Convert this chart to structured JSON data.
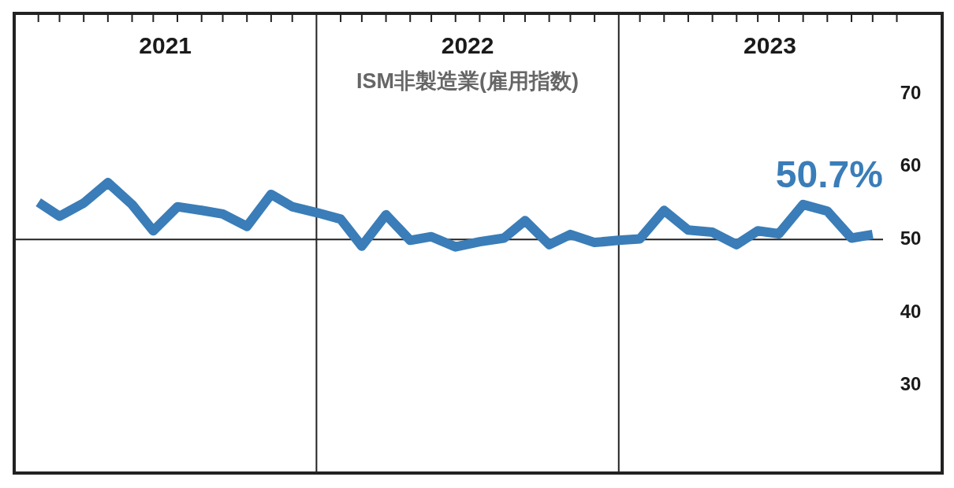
{
  "chart_data": {
    "type": "line",
    "title": "ISM非製造業(雇用指数)",
    "x": [
      2021.08,
      2021.15,
      2021.23,
      2021.31,
      2021.39,
      2021.46,
      2021.54,
      2021.62,
      2021.69,
      2021.77,
      2021.85,
      2021.92,
      2022.0,
      2022.08,
      2022.15,
      2022.23,
      2022.31,
      2022.38,
      2022.46,
      2022.54,
      2022.62,
      2022.69,
      2022.77,
      2022.84,
      2022.92,
      2023.0,
      2023.07,
      2023.15,
      2023.23,
      2023.31,
      2023.39,
      2023.46,
      2023.53,
      2023.61,
      2023.69,
      2023.77,
      2023.84
    ],
    "series": [
      {
        "color": "#3a7db8",
        "values": [
          55.1,
          53.2,
          55.0,
          57.8,
          54.8,
          51.2,
          54.5,
          54.0,
          53.5,
          51.8,
          56.2,
          54.5,
          53.7,
          52.8,
          49.1,
          53.4,
          49.9,
          50.4,
          49.0,
          49.7,
          50.2,
          52.6,
          49.3,
          50.7,
          49.6,
          49.9,
          50.1,
          54.0,
          51.3,
          51.0,
          49.3,
          51.2,
          50.8,
          54.8,
          53.9,
          50.2,
          50.7
        ]
      }
    ],
    "xlim": [
      2021,
      2024.07
    ],
    "xticks": [
      {
        "value": 2021.5,
        "label": "2021"
      },
      {
        "value": 2022.5,
        "label": "2022"
      },
      {
        "value": 2023.5,
        "label": "2023"
      },
      {
        "value": 2021.08,
        "label": null
      },
      {
        "value": 2021.15,
        "label": null
      },
      {
        "value": 2021.23,
        "label": null
      },
      {
        "value": 2021.31,
        "label": null
      },
      {
        "value": 2021.39,
        "label": null
      },
      {
        "value": 2021.46,
        "label": null
      },
      {
        "value": 2021.54,
        "label": null
      },
      {
        "value": 2021.62,
        "label": null
      },
      {
        "value": 2021.69,
        "label": null
      },
      {
        "value": 2021.77,
        "label": null
      },
      {
        "value": 2021.85,
        "label": null
      },
      {
        "value": 2021.92,
        "label": null
      },
      {
        "value": 2022.08,
        "label": null
      },
      {
        "value": 2022.15,
        "label": null
      },
      {
        "value": 2022.23,
        "label": null
      },
      {
        "value": 2022.31,
        "label": null
      },
      {
        "value": 2022.38,
        "label": null
      },
      {
        "value": 2022.46,
        "label": null
      },
      {
        "value": 2022.54,
        "label": null
      },
      {
        "value": 2022.62,
        "label": null
      },
      {
        "value": 2022.69,
        "label": null
      },
      {
        "value": 2022.77,
        "label": null
      },
      {
        "value": 2022.84,
        "label": null
      },
      {
        "value": 2022.92,
        "label": null
      },
      {
        "value": 2023.07,
        "label": null
      },
      {
        "value": 2023.15,
        "label": null
      },
      {
        "value": 2023.23,
        "label": null
      },
      {
        "value": 2023.31,
        "label": null
      },
      {
        "value": 2023.39,
        "label": null
      },
      {
        "value": 2023.46,
        "label": null
      },
      {
        "value": 2023.53,
        "label": null
      },
      {
        "value": 2023.61,
        "label": null
      },
      {
        "value": 2023.69,
        "label": null
      },
      {
        "value": 2023.77,
        "label": null
      },
      {
        "value": 2023.84,
        "label": null
      },
      {
        "value": 2023.92,
        "label": null
      }
    ],
    "ylim": [
      18,
      81
    ],
    "yticks": [
      30,
      40,
      50,
      60,
      70
    ],
    "ref_lines": [
      {
        "axis": "y",
        "value": 50,
        "color": "#222222"
      },
      {
        "axis": "x",
        "value": 2022,
        "color": "#222222"
      },
      {
        "axis": "x",
        "value": 2023,
        "color": "#222222"
      }
    ],
    "annotations": [
      {
        "text": "50.7%",
        "x": 2023.84,
        "y": 50.7
      }
    ],
    "grid": false,
    "legend": false,
    "marker": "none",
    "line_style": "solid"
  }
}
